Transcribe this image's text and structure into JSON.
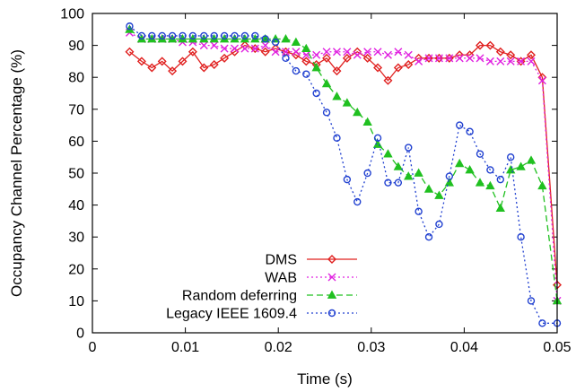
{
  "chart_data": {
    "type": "line",
    "title": "",
    "xlabel": "Time (s)",
    "ylabel": "Occupancy Channel Percentage (%)",
    "xlim": [
      0,
      0.05
    ],
    "ylim": [
      0,
      100
    ],
    "xticks": [
      0,
      0.01,
      0.02,
      0.03,
      0.04,
      0.05
    ],
    "xtick_labels": [
      "0",
      "0.01",
      "0.02",
      "0.03",
      "0.04",
      "0.05"
    ],
    "yticks": [
      0,
      10,
      20,
      30,
      40,
      50,
      60,
      70,
      80,
      90,
      100
    ],
    "ytick_labels": [
      "0",
      "10",
      "20",
      "30",
      "40",
      "50",
      "60",
      "70",
      "80",
      "90",
      "100"
    ],
    "grid": false,
    "legend_position": "bottom-left",
    "series": [
      {
        "name": "DMS",
        "color": "#e0201f",
        "marker": "diamond",
        "dash": "solid",
        "x": [
          0.004,
          0.0053,
          0.0064,
          0.0075,
          0.0086,
          0.0097,
          0.0108,
          0.012,
          0.0131,
          0.0142,
          0.0153,
          0.0164,
          0.0175,
          0.0186,
          0.0197,
          0.0208,
          0.0219,
          0.023,
          0.0241,
          0.0252,
          0.0263,
          0.0274,
          0.0285,
          0.0296,
          0.0307,
          0.0318,
          0.0329,
          0.034,
          0.0351,
          0.0362,
          0.0373,
          0.0384,
          0.0395,
          0.0406,
          0.0417,
          0.0428,
          0.0439,
          0.045,
          0.0461,
          0.0472,
          0.0484,
          0.05
        ],
        "y": [
          88,
          85,
          83,
          85,
          82,
          85,
          88,
          83,
          84,
          86,
          88,
          90,
          89,
          88,
          89,
          88,
          87,
          85,
          84,
          86,
          82,
          86,
          88,
          86,
          83,
          79,
          83,
          84,
          86,
          86,
          86,
          86,
          87,
          87,
          90,
          90,
          88,
          87,
          85,
          87,
          80,
          15
        ]
      },
      {
        "name": "WAB",
        "color": "#e020e0",
        "marker": "cross",
        "dash": "dotted",
        "x": [
          0.004,
          0.0053,
          0.0064,
          0.0075,
          0.0086,
          0.0097,
          0.0108,
          0.012,
          0.0131,
          0.0142,
          0.0153,
          0.0164,
          0.0175,
          0.0186,
          0.0197,
          0.0208,
          0.0219,
          0.023,
          0.0241,
          0.0252,
          0.0263,
          0.0274,
          0.0285,
          0.0296,
          0.0307,
          0.0318,
          0.0329,
          0.034,
          0.0351,
          0.0362,
          0.0373,
          0.0384,
          0.0395,
          0.0406,
          0.0417,
          0.0428,
          0.0439,
          0.045,
          0.0461,
          0.0472,
          0.0484,
          0.05
        ],
        "y": [
          94,
          92,
          92,
          92,
          92,
          91,
          91,
          90,
          90,
          89,
          89,
          89,
          89,
          90,
          88,
          88,
          88,
          87,
          87,
          88,
          88,
          88,
          87,
          88,
          88,
          87,
          88,
          87,
          85,
          86,
          86,
          86,
          86,
          86,
          86,
          85,
          85,
          85,
          85,
          85,
          79,
          10
        ]
      },
      {
        "name": "Random deferring",
        "color": "#20c020",
        "marker": "triangle",
        "dash": "dashed",
        "x": [
          0.004,
          0.0053,
          0.0064,
          0.0075,
          0.0086,
          0.0097,
          0.0108,
          0.012,
          0.0131,
          0.0142,
          0.0153,
          0.0164,
          0.0175,
          0.0186,
          0.0197,
          0.0208,
          0.0219,
          0.023,
          0.0241,
          0.0252,
          0.0263,
          0.0274,
          0.0285,
          0.0296,
          0.0307,
          0.0318,
          0.0329,
          0.034,
          0.0351,
          0.0362,
          0.0373,
          0.0384,
          0.0395,
          0.0406,
          0.0417,
          0.0428,
          0.0439,
          0.045,
          0.0461,
          0.0472,
          0.0484,
          0.05
        ],
        "y": [
          95,
          92,
          92,
          92,
          92,
          92,
          92,
          92,
          92,
          92,
          92,
          92,
          92,
          92,
          92,
          92,
          91,
          89,
          83,
          78,
          74,
          72,
          69,
          66,
          59,
          56,
          52,
          49,
          50,
          45,
          43,
          47,
          53,
          51,
          47,
          46,
          39,
          51,
          52,
          54,
          46,
          10
        ]
      },
      {
        "name": "Legacy IEEE 1609.4",
        "color": "#2040d0",
        "marker": "circle",
        "dash": "dotted",
        "x": [
          0.004,
          0.0053,
          0.0064,
          0.0075,
          0.0086,
          0.0097,
          0.0108,
          0.012,
          0.0131,
          0.0142,
          0.0153,
          0.0164,
          0.0175,
          0.0186,
          0.0197,
          0.0208,
          0.0219,
          0.023,
          0.0241,
          0.0252,
          0.0263,
          0.0274,
          0.0285,
          0.0296,
          0.0307,
          0.0318,
          0.0329,
          0.034,
          0.0351,
          0.0362,
          0.0373,
          0.0384,
          0.0395,
          0.0406,
          0.0417,
          0.0428,
          0.0439,
          0.045,
          0.0461,
          0.0472,
          0.0484,
          0.05
        ],
        "y": [
          96,
          93,
          93,
          93,
          93,
          93,
          93,
          93,
          93,
          93,
          93,
          93,
          93,
          92,
          91,
          86,
          82,
          81,
          75,
          69,
          61,
          48,
          41,
          50,
          61,
          47,
          47,
          58,
          38,
          30,
          34,
          49,
          65,
          63,
          56,
          51,
          48,
          55,
          30,
          10,
          3,
          3
        ]
      }
    ]
  }
}
